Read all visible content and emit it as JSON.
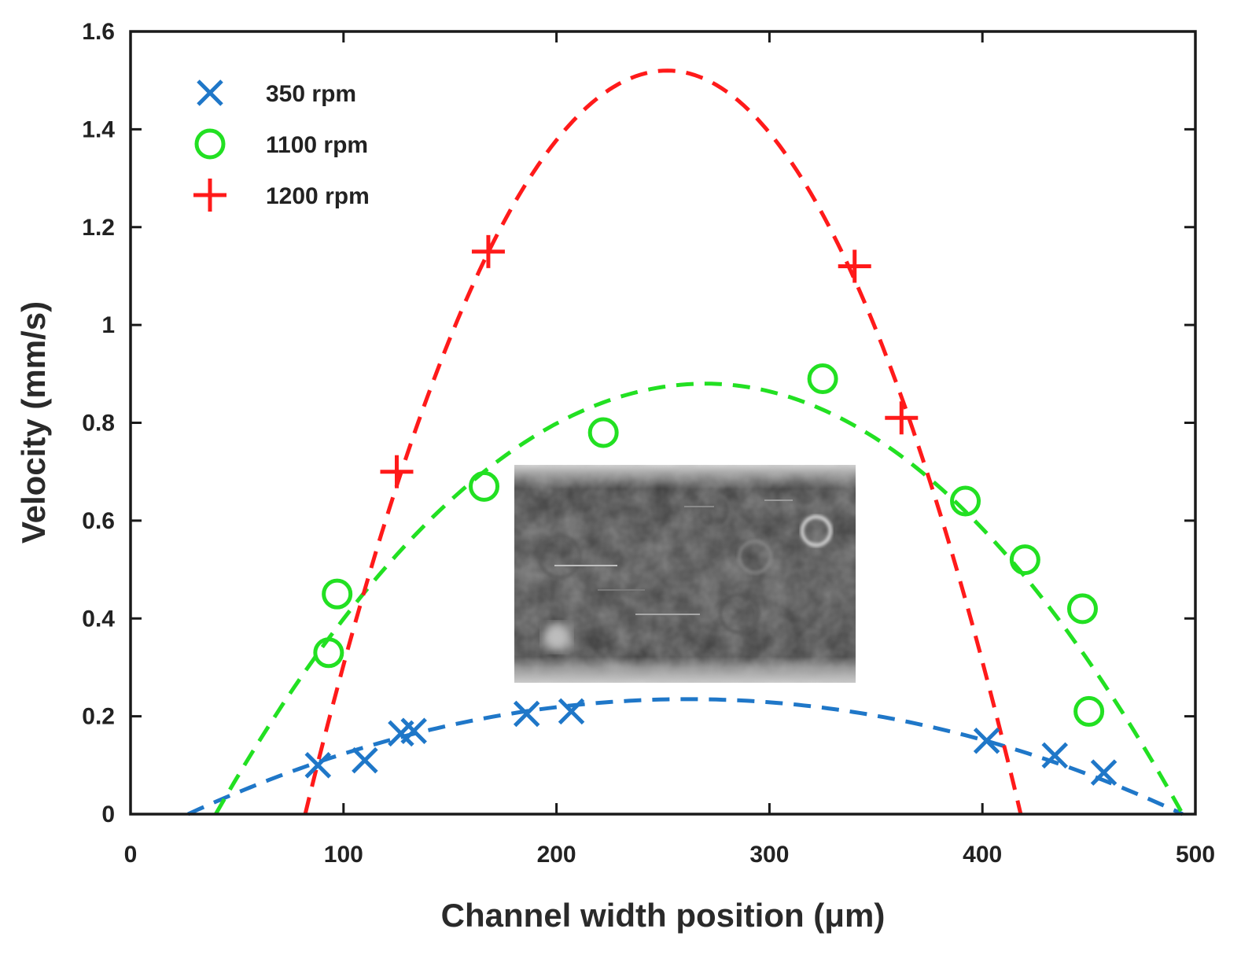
{
  "chart_data": {
    "type": "scatter",
    "title": "",
    "xlabel": "Channel width position (μm)",
    "ylabel": "Velocity (mm/s)",
    "xlim": [
      0,
      500
    ],
    "ylim": [
      0,
      1.6
    ],
    "xticks": [
      0,
      100,
      200,
      300,
      400,
      500
    ],
    "xtick_labels": [
      "0",
      "100",
      "200",
      "300",
      "400",
      "500"
    ],
    "yticks": [
      0,
      0.2,
      0.4,
      0.6,
      0.8,
      1.0,
      1.2,
      1.4,
      1.6
    ],
    "ytick_labels": [
      "0",
      "0.2",
      "0.4",
      "0.6",
      "0.8",
      "1",
      "1.2",
      "1.4",
      "1.6"
    ],
    "grid": false,
    "legend_position": "top-left",
    "series": [
      {
        "name": "350 rpm",
        "marker": "x",
        "color": "#1f77c8",
        "x": [
          88,
          110,
          127,
          133,
          186,
          207,
          402,
          434,
          457
        ],
        "y": [
          0.1,
          0.11,
          0.165,
          0.17,
          0.205,
          0.21,
          0.15,
          0.12,
          0.085
        ],
        "fit": {
          "style": "dashed",
          "x_range": [
            27,
            494
          ],
          "type": "parabola",
          "vertex": [
            262,
            0.235
          ]
        }
      },
      {
        "name": "1100 rpm",
        "marker": "o",
        "color": "#22e022",
        "x": [
          93,
          97,
          166,
          222,
          325,
          392,
          420,
          447,
          450
        ],
        "y": [
          0.33,
          0.45,
          0.67,
          0.78,
          0.89,
          0.64,
          0.52,
          0.42,
          0.21
        ],
        "fit": {
          "style": "dashed",
          "x_range": [
            40,
            494
          ],
          "type": "parabola",
          "vertex": [
            270,
            0.88
          ]
        }
      },
      {
        "name": "1200 rpm",
        "marker": "+",
        "color": "#ff1a1a",
        "x": [
          125,
          168,
          340,
          362
        ],
        "y": [
          0.7,
          1.15,
          1.12,
          0.81
        ],
        "fit": {
          "style": "dashed",
          "x_range": [
            82,
            418
          ],
          "type": "parabola",
          "vertex": [
            252,
            1.52
          ]
        }
      }
    ],
    "inset": {
      "description_label": "channel image",
      "x_range": [
        180,
        340
      ],
      "y_range": [
        0.3,
        0.72
      ]
    }
  }
}
